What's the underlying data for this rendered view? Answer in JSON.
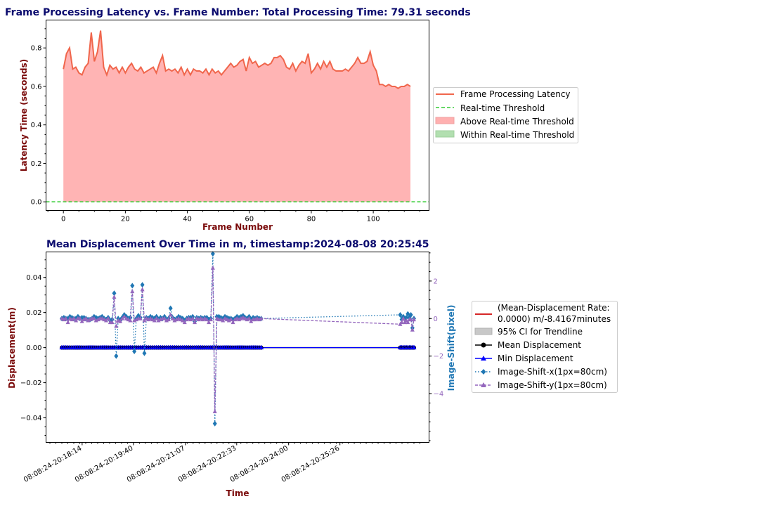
{
  "chart_data": [
    {
      "type": "area",
      "title": "Frame Processing Latency vs. Frame Number: Total Processing Time: 79.31 seconds",
      "xlabel": "Frame Number",
      "ylabel": "Latency Time (seconds)",
      "xlim": [
        -5.6,
        118
      ],
      "ylim": [
        -0.045,
        0.945
      ],
      "x_ticks": [
        0,
        20,
        40,
        60,
        80,
        100
      ],
      "y_ticks": [
        0.0,
        0.2,
        0.4,
        0.6,
        0.8
      ],
      "grid": false,
      "legend_position": "right",
      "legend": [
        "Frame Processing Latency",
        "Real-time Threshold",
        "Above Real-time Threshold",
        "Within Real-time Threshold"
      ],
      "colors": {
        "line": "#f0664c",
        "threshold": "#33cc33",
        "above": "#ffb0b0",
        "within": "#b2dfb0"
      },
      "threshold": 0.0,
      "x_start": 0,
      "series": [
        {
          "name": "Frame Processing Latency",
          "values": [
            0.69,
            0.77,
            0.8,
            0.69,
            0.7,
            0.67,
            0.66,
            0.7,
            0.72,
            0.88,
            0.73,
            0.78,
            0.89,
            0.7,
            0.66,
            0.71,
            0.69,
            0.7,
            0.67,
            0.7,
            0.67,
            0.7,
            0.72,
            0.69,
            0.68,
            0.7,
            0.67,
            0.68,
            0.69,
            0.7,
            0.67,
            0.72,
            0.76,
            0.68,
            0.69,
            0.68,
            0.69,
            0.67,
            0.7,
            0.66,
            0.69,
            0.66,
            0.69,
            0.68,
            0.68,
            0.67,
            0.69,
            0.66,
            0.69,
            0.67,
            0.68,
            0.66,
            0.68,
            0.7,
            0.72,
            0.7,
            0.71,
            0.73,
            0.74,
            0.68,
            0.75,
            0.72,
            0.73,
            0.7,
            0.71,
            0.72,
            0.71,
            0.72,
            0.75,
            0.75,
            0.76,
            0.74,
            0.7,
            0.69,
            0.72,
            0.68,
            0.71,
            0.73,
            0.72,
            0.77,
            0.67,
            0.69,
            0.72,
            0.69,
            0.73,
            0.7,
            0.73,
            0.69,
            0.68,
            0.68,
            0.68,
            0.69,
            0.68,
            0.7,
            0.72,
            0.75,
            0.72,
            0.72,
            0.73,
            0.78,
            0.71,
            0.68,
            0.61,
            0.61,
            0.6,
            0.61,
            0.6,
            0.6,
            0.59,
            0.6,
            0.6,
            0.61,
            0.6
          ]
        }
      ]
    },
    {
      "type": "line",
      "title": "Mean Displacement Over Time in m, timestamp:2024-08-08 20:25:45",
      "xlabel": "Time",
      "ylabel": "Displacement(m)",
      "ylabel_right": "Image-Shift(pixel)",
      "ylim": [
        -0.054,
        0.0545
      ],
      "ylim_right": [
        -6.6,
        3.55
      ],
      "x_ticks": [
        "08:08:24-20:18:14",
        "08:08:24-20:19:40",
        "08:08:24-20:21:07",
        "08:08:24-20:22:33",
        "08:08:24-20:24:00",
        "08:08:24-20:25:26"
      ],
      "y_ticks": [
        -0.04,
        -0.02,
        0.0,
        0.02,
        0.04
      ],
      "y_ticks_right": [
        -4,
        -2,
        0,
        2
      ],
      "grid": false,
      "legend_position": "right",
      "legend": [
        "(Mean-Displacement Rate:\n 0.0000) m/-8.4167minutes",
        "95% CI for Trendline",
        "Mean Displacement",
        "Min Displacement",
        "Image-Shift-x(1px=80cm)",
        "Image-Shift-y(1px=80cm)"
      ],
      "colors": {
        "trend": "#d62728",
        "ci": "#c8c8c8",
        "mean": "#000000",
        "min": "#0000ff",
        "shift_x": "#1f77b4",
        "shift_y": "#9467bd"
      },
      "x_unit": "seconds after 20:17:40",
      "segments": [
        {
          "start": 0,
          "end": 334,
          "n": 100
        },
        {
          "start": 567,
          "end": 590,
          "n": 10
        }
      ],
      "mean_displacement": 0.0,
      "shift_x": [
        0.0,
        0.05,
        0.0,
        0.0,
        0.1,
        0.05,
        0.0,
        0.0,
        0.1,
        0.0,
        0.05,
        0.05,
        0.0,
        -0.05,
        -0.05,
        0.0,
        0.1,
        0.05,
        0.0,
        0.05,
        0.1,
        0.0,
        -0.05,
        0.05,
        -0.1,
        -0.05,
        1.35,
        -2.0,
        0.0,
        -0.1,
        0.05,
        0.2,
        0.1,
        0.0,
        0.05,
        1.75,
        -1.75,
        0.0,
        0.15,
        0.05,
        1.8,
        -1.85,
        0.05,
        0.0,
        0.1,
        0.05,
        0.0,
        0.1,
        -0.05,
        0.05,
        0.0,
        0.1,
        -0.05,
        0.0,
        0.55,
        0.05,
        -0.05,
        0.0,
        0.1,
        0.05,
        0.0,
        -0.1,
        0.0,
        0.05,
        0.05,
        0.1,
        -0.15,
        0.05,
        0.0,
        0.05,
        0.0,
        0.05,
        0.05,
        -0.05,
        0.0,
        3.45,
        -5.6,
        0.1,
        0.1,
        0.05,
        0.0,
        0.1,
        0.05,
        0.0,
        0.0,
        -0.05,
        0.0,
        0.1,
        0.05,
        0.1,
        0.15,
        0.05,
        0.0,
        0.1,
        -0.05,
        0.05,
        0.0,
        0.05,
        0.0,
        0.0,
        0.2,
        -0.05,
        0.1,
        0.0,
        0.05,
        0.25,
        0.05,
        0.2,
        -0.5,
        0.0
      ],
      "shift_y": [
        0.0,
        -0.05,
        0.0,
        -0.2,
        0.0,
        -0.05,
        0.0,
        -0.1,
        0.0,
        0.0,
        -0.15,
        -0.05,
        0.0,
        -0.1,
        -0.05,
        0.0,
        0.0,
        -0.1,
        -0.05,
        0.0,
        0.0,
        -0.05,
        -0.1,
        0.0,
        -0.2,
        -0.2,
        1.15,
        -0.4,
        -0.1,
        -0.15,
        0.0,
        0.1,
        0.0,
        -0.05,
        -0.1,
        1.45,
        -0.1,
        -0.05,
        0.0,
        0.0,
        1.55,
        -0.1,
        0.0,
        -0.05,
        0.0,
        -0.05,
        -0.1,
        0.0,
        -0.1,
        -0.05,
        0.0,
        0.0,
        -0.1,
        -0.05,
        0.2,
        0.0,
        -0.1,
        -0.05,
        0.0,
        -0.05,
        -0.1,
        -0.2,
        -0.05,
        0.0,
        -0.05,
        0.0,
        -0.2,
        0.0,
        -0.05,
        0.0,
        -0.05,
        0.0,
        -0.05,
        -0.2,
        -0.05,
        2.7,
        -4.95,
        0.0,
        -0.05,
        -0.05,
        -0.1,
        0.0,
        -0.05,
        -0.1,
        -0.05,
        -0.2,
        -0.05,
        0.0,
        -0.05,
        0.0,
        0.05,
        0.0,
        -0.05,
        0.0,
        -0.15,
        -0.05,
        -0.05,
        0.0,
        -0.05,
        0.0,
        -0.3,
        -0.2,
        0.0,
        -0.2,
        -0.1,
        -0.2,
        -0.05,
        -0.05,
        -0.6,
        -0.05
      ]
    }
  ]
}
